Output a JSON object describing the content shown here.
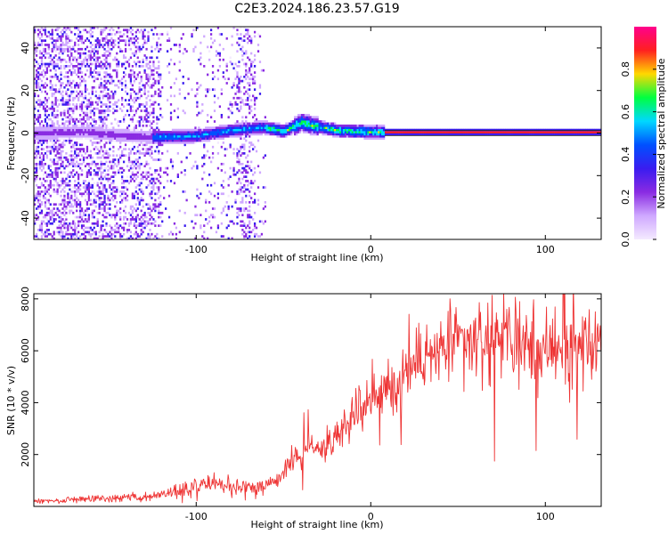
{
  "figure": {
    "title": "C2E3.2024.186.23.57.G19"
  },
  "chart_data": [
    {
      "type": "heatmap",
      "xlabel": "Height of straight line (km)",
      "ylabel": "Frequency (Hz)",
      "xlim": [
        -193,
        132
      ],
      "ylim": [
        -50,
        50
      ],
      "xticks": [
        -100,
        0,
        100
      ],
      "yticks": [
        40,
        20,
        0,
        -20,
        -40
      ],
      "colorbar": {
        "label": "Normalized spectral amplitude",
        "range": [
          0,
          1
        ],
        "ticks": [
          0.0,
          0.2,
          0.4,
          0.6,
          0.8
        ],
        "colors": [
          "#f4eaff",
          "#cfa8ff",
          "#8a2be2",
          "#3a1cf0",
          "#0050ff",
          "#00d8ff",
          "#00ff40",
          "#ffd800",
          "#ff2020",
          "#ff008c"
        ]
      },
      "grid": false,
      "trace_center": [
        [
          -193,
          -0.5
        ],
        [
          -165,
          0.2
        ],
        [
          -145,
          -1.5
        ],
        [
          -125,
          -2.5
        ],
        [
          -100,
          -1.8
        ],
        [
          -80,
          0.8
        ],
        [
          -62,
          2.2
        ],
        [
          -50,
          0.5
        ],
        [
          -40,
          4.5
        ],
        [
          -32,
          2.8
        ],
        [
          -20,
          0.8
        ],
        [
          -5,
          0.2
        ],
        [
          10,
          0.0
        ],
        [
          132,
          0.0
        ]
      ]
    },
    {
      "type": "line",
      "xlabel": "Height of straight line (km)",
      "ylabel": "SNR (10 * v/v)",
      "xlim": [
        -193,
        132
      ],
      "ylim": [
        0,
        8200
      ],
      "xticks": [
        -100,
        0,
        100
      ],
      "yticks": [
        2000,
        4000,
        6000,
        8000
      ],
      "grid": false,
      "series": [
        {
          "color": "#ee3333",
          "envelope": [
            [
              -193,
              200
            ],
            [
              -160,
              280
            ],
            [
              -130,
              350
            ],
            [
              -110,
              600
            ],
            [
              -90,
              900
            ],
            [
              -70,
              700
            ],
            [
              -55,
              900
            ],
            [
              -45,
              1800
            ],
            [
              -35,
              2200
            ],
            [
              -25,
              2300
            ],
            [
              -15,
              3200
            ],
            [
              -5,
              3900
            ],
            [
              5,
              4400
            ],
            [
              15,
              4900
            ],
            [
              25,
              5400
            ],
            [
              40,
              6000
            ],
            [
              60,
              6400
            ],
            [
              80,
              6300
            ],
            [
              100,
              6100
            ],
            [
              120,
              6200
            ],
            [
              132,
              6200
            ]
          ]
        }
      ]
    }
  ]
}
